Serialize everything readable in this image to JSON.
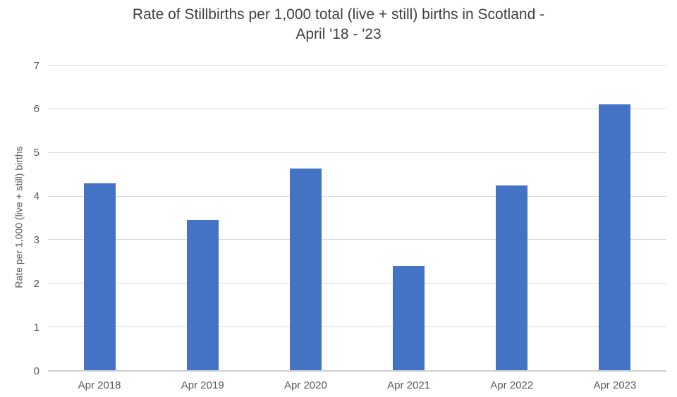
{
  "chart_data": {
    "type": "bar",
    "title": "Rate of Stillbirths per 1,000 total (live + still) births in Scotland - April '18 - '23",
    "title_lines": [
      "Rate of Stillbirths per 1,000 total (live + still) births in Scotland -",
      "April '18 - '23"
    ],
    "categories": [
      "Apr 2018",
      "Apr 2019",
      "Apr 2020",
      "Apr 2021",
      "Apr 2022",
      "Apr 2023"
    ],
    "values": [
      4.28,
      3.45,
      4.62,
      2.4,
      4.23,
      6.09
    ],
    "xlabel": "",
    "ylabel": "Rate per 1,000 (live + still) births",
    "ylim": [
      0,
      7
    ],
    "yticks": [
      0,
      1,
      2,
      3,
      4,
      5,
      6,
      7
    ],
    "grid": true,
    "legend": false,
    "colors": {
      "bar": "#4472C4",
      "gridline": "#D9D9D9",
      "axis_line": "#CFCFCF",
      "tick_text": "#595959",
      "title_text": "#404040",
      "background": "#FFFFFF"
    }
  }
}
